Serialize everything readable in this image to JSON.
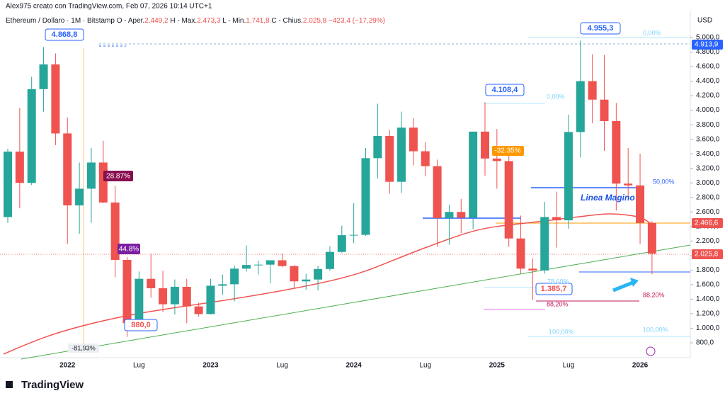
{
  "chart_data": {
    "type": "candlestick",
    "subtitle": "Alex975 creato con TradingView.com, Feb 07, 2026 10:14 UTC+1",
    "title": "Ethereum / Dollaro · 1M · Bitstamp",
    "ohlc_labels": [
      "O - Aper.",
      "H - Max.",
      "L - Min.",
      "C - Chius."
    ],
    "ohlc_values": [
      "2.449,2",
      "2.473,3",
      "1.741,8",
      "2.025,8",
      "−423,4 (−17,29%)"
    ],
    "y_axis_label": "USD",
    "brand": "TradingView",
    "up_color": "#26a69a",
    "down_color": "#ef5350",
    "categories": [
      null,
      null,
      null,
      null,
      null,
      "2022",
      null,
      null,
      null,
      null,
      null,
      "Lug",
      null,
      null,
      null,
      null,
      null,
      "2023",
      null,
      null,
      null,
      null,
      null,
      "Lug",
      null,
      null,
      null,
      null,
      null,
      "2024",
      null,
      null,
      null,
      null,
      null,
      "Lug",
      null,
      null,
      null,
      null,
      null,
      "2025",
      null,
      null,
      null,
      null,
      null,
      "Lug",
      null,
      null,
      null,
      null,
      null,
      "2026",
      null
    ],
    "open": [
      2530,
      3430,
      3000,
      4290,
      4630,
      3680,
      2690,
      2920,
      3280,
      2730,
      1940,
      1070,
      1680,
      1550,
      1330,
      1570,
      1300,
      1195,
      1585,
      1605,
      1820,
      1870,
      1875,
      1935,
      1855,
      1645,
      1670,
      1815,
      2050,
      2280,
      2285,
      3340,
      3645,
      3015,
      3760,
      3435,
      3230,
      2515,
      2600,
      2520,
      3705,
      3335,
      3300,
      2235,
      1820,
      1795,
      2530,
      2485,
      3700,
      4400,
      4145,
      3850,
      2990,
      2965,
      2449.2
    ],
    "high": [
      3470,
      4030,
      4460,
      4868.8,
      4780,
      3900,
      3280,
      3480,
      3580,
      2960,
      1980,
      1780,
      2030,
      1790,
      1670,
      1680,
      1350,
      1680,
      1740,
      1860,
      2140,
      1930,
      1930,
      2030,
      1870,
      1750,
      1860,
      2130,
      2410,
      2720,
      3480,
      4090,
      3730,
      3980,
      3890,
      3560,
      3320,
      2700,
      2780,
      3700,
      4108.4,
      3740,
      3440,
      2550,
      1960,
      2740,
      2880,
      3940,
      4955.3,
      4770,
      4760,
      4100,
      3480,
      3400,
      2473.3
    ],
    "low": [
      2450,
      2650,
      2970,
      3980,
      3520,
      2160,
      2300,
      2450,
      2720,
      1700,
      880,
      1000,
      1420,
      1220,
      1190,
      1070,
      1160,
      1190,
      1460,
      1370,
      1780,
      1740,
      1620,
      1840,
      1550,
      1530,
      1520,
      1790,
      2040,
      2170,
      2270,
      3060,
      2850,
      2860,
      3240,
      3090,
      2120,
      2150,
      2310,
      2360,
      3100,
      2920,
      2120,
      1750,
      1385.7,
      1750,
      2110,
      2370,
      3350,
      3820,
      3440,
      2620,
      2770,
      2160,
      1741.8
    ],
    "close": [
      3430,
      3000,
      4290,
      4630,
      3680,
      2690,
      2920,
      3280,
      2730,
      1940,
      1070,
      1680,
      1550,
      1330,
      1570,
      1300,
      1195,
      1585,
      1605,
      1820,
      1870,
      1875,
      1935,
      1855,
      1645,
      1670,
      1815,
      2050,
      2280,
      2285,
      3340,
      3645,
      3015,
      3760,
      3435,
      3230,
      2515,
      2600,
      2520,
      3705,
      3335,
      3300,
      2235,
      1820,
      1795,
      2530,
      2485,
      3700,
      4400,
      4145,
      3850,
      2990,
      2965,
      2449.2,
      2025.8
    ],
    "ylim": [
      595,
      5370
    ],
    "yticks": [
      {
        "value": 800,
        "label": "800,0"
      },
      {
        "value": 1000,
        "label": "1.000,0"
      },
      {
        "value": 1200,
        "label": "1.200,0"
      },
      {
        "value": 1400,
        "label": "1.400,0"
      },
      {
        "value": 1600,
        "label": "1.600,0"
      },
      {
        "value": 1800,
        "label": "1.800,0"
      },
      {
        "value": 2000,
        "label": "2.000,0"
      },
      {
        "value": 2200,
        "label": "2.200,0"
      },
      {
        "value": 2400,
        "label": "2.400,0"
      },
      {
        "value": 2600,
        "label": "2.600,0"
      },
      {
        "value": 2800,
        "label": "2.800,0"
      },
      {
        "value": 3000,
        "label": "3.000,0"
      },
      {
        "value": 3200,
        "label": "3.200,0"
      },
      {
        "value": 3400,
        "label": "3.400,0"
      },
      {
        "value": 3600,
        "label": "3.600,0"
      },
      {
        "value": 3800,
        "label": "3.800,0"
      },
      {
        "value": 4000,
        "label": "4.000,0"
      },
      {
        "value": 4200,
        "label": "4.200,0"
      },
      {
        "value": 4400,
        "label": "4.400,0"
      },
      {
        "value": 4600,
        "label": "4.600,0"
      },
      {
        "value": 4800,
        "label": "4.800,0"
      },
      {
        "value": 5000,
        "label": "5.000,0"
      }
    ],
    "annotations": [
      "4.868,8",
      "880,0",
      "4.108,4",
      "1.385,7",
      "4.955,3",
      "Linea Magino",
      "28.87%",
      "44.8%",
      "-32.35%",
      "-81,93%",
      "50,00%",
      "0,00%",
      "0,00%",
      "100,00%",
      "100,00%",
      "88,20%",
      "88,20%",
      "78,60%",
      "4.913,9",
      "2.466,6",
      "2.025,8"
    ]
  }
}
